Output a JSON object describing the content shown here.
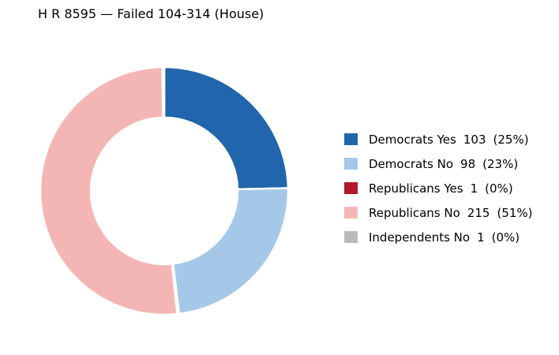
{
  "chart_data": {
    "type": "pie",
    "title": "H R 8595 — Failed 104-314 (House)",
    "donut": true,
    "start": "top, clockwise",
    "legend_position": "right",
    "slices": [
      {
        "label": "Democrats Yes",
        "value": 103,
        "percent": "25%",
        "color": "#2166ac",
        "pattern": "none"
      },
      {
        "label": "Democrats No",
        "value": 98,
        "percent": "23%",
        "color": "#a6c8e8",
        "pattern": "none"
      },
      {
        "label": "Republicans Yes",
        "value": 1,
        "percent": "0%",
        "color": "#b2182b",
        "pattern": "none"
      },
      {
        "label": "Republicans No",
        "value": 215,
        "percent": "51%",
        "color": "#f4b6b4",
        "pattern": "none"
      },
      {
        "label": "Independents No",
        "value": 1,
        "percent": "0%",
        "color": "#bdbdbd",
        "pattern": "hatched"
      }
    ]
  }
}
